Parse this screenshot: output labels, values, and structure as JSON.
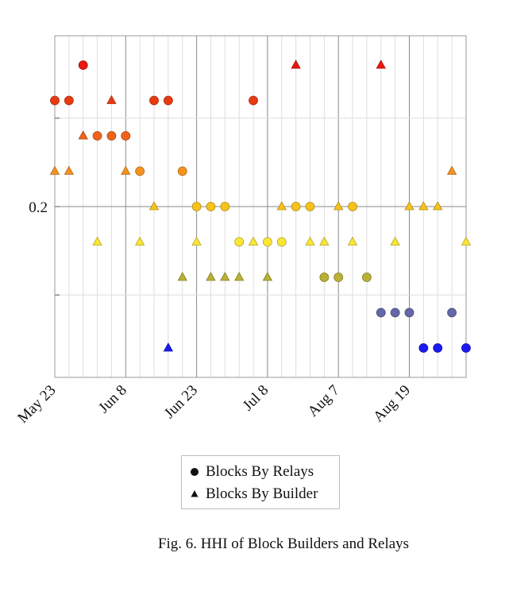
{
  "chart_data": {
    "type": "scatter",
    "title": "",
    "xlabel": "",
    "ylabel": "",
    "x_tick_labels": [
      "May 23",
      "Jun 8",
      "Jun 23",
      "Jul 8",
      "Aug 7",
      "Aug 19"
    ],
    "y_tick_labels": [
      "0.2"
    ],
    "grid": true,
    "legend_placement": "bottom-center",
    "series": [
      {
        "name": "Blocks By Relays",
        "marker": "circle",
        "points": [
          {
            "x": 0,
            "y": 0.26
          },
          {
            "x": 1,
            "y": 0.26
          },
          {
            "x": 2,
            "y": 0.28
          },
          {
            "x": 3,
            "y": 0.24
          },
          {
            "x": 4,
            "y": 0.24
          },
          {
            "x": 5,
            "y": 0.24
          },
          {
            "x": 6,
            "y": 0.22
          },
          {
            "x": 7,
            "y": 0.26
          },
          {
            "x": 8,
            "y": 0.26
          },
          {
            "x": 9,
            "y": 0.22
          },
          {
            "x": 10,
            "y": 0.2
          },
          {
            "x": 11,
            "y": 0.2
          },
          {
            "x": 12,
            "y": 0.2
          },
          {
            "x": 13,
            "y": 0.18
          },
          {
            "x": 14,
            "y": 0.26
          },
          {
            "x": 15,
            "y": 0.18
          },
          {
            "x": 16,
            "y": 0.18
          },
          {
            "x": 17,
            "y": 0.2
          },
          {
            "x": 18,
            "y": 0.2
          },
          {
            "x": 19,
            "y": 0.16
          },
          {
            "x": 20,
            "y": 0.16
          },
          {
            "x": 21,
            "y": 0.2
          },
          {
            "x": 22,
            "y": 0.16
          },
          {
            "x": 23,
            "y": 0.14
          },
          {
            "x": 24,
            "y": 0.14
          },
          {
            "x": 25,
            "y": 0.14
          },
          {
            "x": 26,
            "y": 0.12
          },
          {
            "x": 27,
            "y": 0.12
          },
          {
            "x": 28,
            "y": 0.14
          },
          {
            "x": 29,
            "y": 0.12
          }
        ]
      },
      {
        "name": "Blocks By Builder",
        "marker": "triangle",
        "points": [
          {
            "x": 0,
            "y": 0.22
          },
          {
            "x": 1,
            "y": 0.22
          },
          {
            "x": 2,
            "y": 0.24
          },
          {
            "x": 3,
            "y": 0.18
          },
          {
            "x": 4,
            "y": 0.26
          },
          {
            "x": 5,
            "y": 0.22
          },
          {
            "x": 6,
            "y": 0.18
          },
          {
            "x": 7,
            "y": 0.2
          },
          {
            "x": 8,
            "y": 0.12
          },
          {
            "x": 9,
            "y": 0.16
          },
          {
            "x": 10,
            "y": 0.18
          },
          {
            "x": 11,
            "y": 0.16
          },
          {
            "x": 12,
            "y": 0.16
          },
          {
            "x": 13,
            "y": 0.16
          },
          {
            "x": 14,
            "y": 0.18
          },
          {
            "x": 15,
            "y": 0.16
          },
          {
            "x": 16,
            "y": 0.2
          },
          {
            "x": 17,
            "y": 0.28
          },
          {
            "x": 18,
            "y": 0.18
          },
          {
            "x": 19,
            "y": 0.18
          },
          {
            "x": 20,
            "y": 0.2
          },
          {
            "x": 21,
            "y": 0.18
          },
          {
            "x": 23,
            "y": 0.28
          },
          {
            "x": 24,
            "y": 0.18
          },
          {
            "x": 25,
            "y": 0.2
          },
          {
            "x": 26,
            "y": 0.2
          },
          {
            "x": 27,
            "y": 0.2
          },
          {
            "x": 28,
            "y": 0.22
          },
          {
            "x": 29,
            "y": 0.18
          }
        ]
      }
    ],
    "color_scale": [
      {
        "y": 0.28,
        "color": "#e8180f"
      },
      {
        "y": 0.26,
        "color": "#ea3a10"
      },
      {
        "y": 0.24,
        "color": "#f0641a"
      },
      {
        "y": 0.22,
        "color": "#f59320"
      },
      {
        "y": 0.2,
        "color": "#f7c21c"
      },
      {
        "y": 0.18,
        "color": "#fae634"
      },
      {
        "y": 0.16,
        "color": "#b9b136"
      },
      {
        "y": 0.14,
        "color": "#6667a8"
      },
      {
        "y": 0.12,
        "color": "#1a1af0"
      }
    ]
  },
  "caption": "Fig. 6.  HHI of Block Builders and Relays"
}
